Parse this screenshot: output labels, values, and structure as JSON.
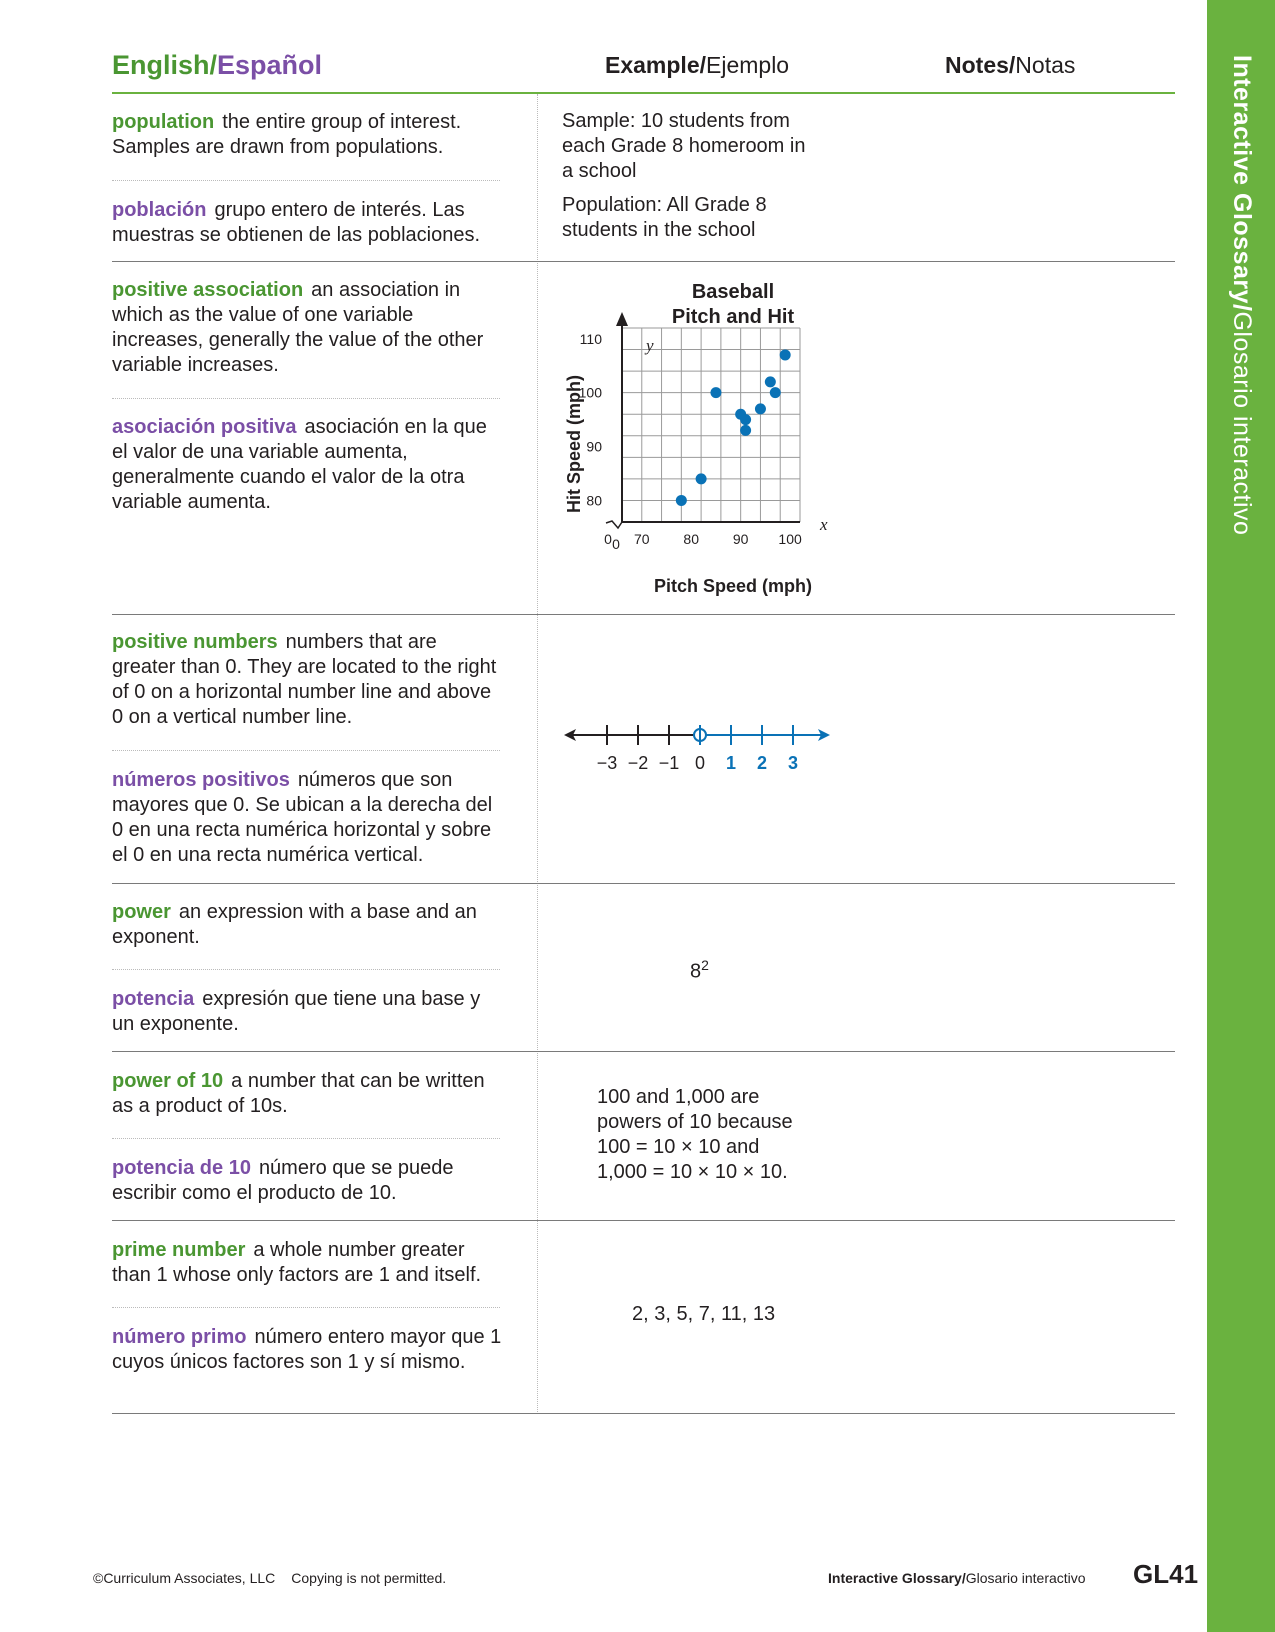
{
  "side_tab": {
    "bold": "Interactive Glossary/",
    "regular": "Glosario interactivo"
  },
  "header": {
    "english": "English/",
    "espanol": "Español",
    "example_bold": "Example/",
    "example_regular": "Ejemplo",
    "notes_bold": "Notes/",
    "notes_regular": "Notas"
  },
  "entries": [
    {
      "en_term": "population",
      "en_def": "the entire group of interest. Samples are drawn from populations.",
      "es_term": "población",
      "es_def": "grupo entero de interés. Las muestras se obtienen de las poblaciones.",
      "example": {
        "line1": "Sample: 10 students from each Grade 8 homeroom in a school",
        "line2": "Population: All Grade 8 students in the school"
      }
    },
    {
      "en_term": "positive association",
      "en_def": "an association in which as the value of one variable increases, generally the value of the other variable increases.",
      "es_term": "asociación positiva",
      "es_def": "asociación en la que el valor de una variable aumenta, generalmente cuando el valor de la otra variable aumenta."
    },
    {
      "en_term": "positive numbers",
      "en_def": "numbers that are greater than 0. They are located to the right of 0 on a horizontal number line and above 0 on a vertical number line.",
      "es_term": "números positivos",
      "es_def": "números que son mayores que 0. Se ubican a la derecha del 0 en una recta numérica horizontal y sobre el 0 en una recta numérica vertical.",
      "number_line": {
        "labels": [
          "−3",
          "−2",
          "−1",
          "0",
          "1",
          "2",
          "3"
        ]
      }
    },
    {
      "en_term": "power",
      "en_def": "an expression with a base and an exponent.",
      "es_term": "potencia",
      "es_def": "expresión que tiene una base y un exponente.",
      "example": {
        "base": "8",
        "exponent": "2"
      }
    },
    {
      "en_term": "power of 10",
      "en_def": "a number that can be written as a product of 10s.",
      "es_term": "potencia de 10",
      "es_def": "número que se puede escribir como el producto de 10.",
      "example": {
        "line1": "100 and 1,000 are",
        "line2": "powers of 10 because",
        "line3": "100 = 10 × 10 and",
        "line4": "1,000 = 10 × 10 × 10."
      }
    },
    {
      "en_term": "prime number",
      "en_def": "a whole number greater than 1 whose only factors are 1 and itself.",
      "es_term": "número primo",
      "es_def": "número entero mayor que 1 cuyos únicos factores son 1 y sí mismo.",
      "example": {
        "text": "2, 3, 5, 7, 11, 13"
      }
    }
  ],
  "chart_data": {
    "type": "scatter",
    "title": "Baseball Pitch and Hit",
    "title_line1": "Baseball",
    "title_line2": "Pitch and Hit",
    "xlabel": "Pitch Speed (mph)",
    "ylabel": "Hit Speed (mph)",
    "x_var": "x",
    "y_var": "y",
    "xlim": [
      66,
      102
    ],
    "ylim": [
      76,
      112
    ],
    "x_ticks": [
      70,
      80,
      90,
      100
    ],
    "y_ticks": [
      80,
      90,
      100,
      110
    ],
    "axis_break_label": "0",
    "grid": true,
    "point_color": "#0a72b6",
    "points": [
      [
        78,
        80
      ],
      [
        82,
        84
      ],
      [
        85,
        100
      ],
      [
        90,
        96
      ],
      [
        91,
        95
      ],
      [
        91,
        93
      ],
      [
        94,
        97
      ],
      [
        96,
        102
      ],
      [
        97,
        100
      ],
      [
        99,
        107
      ]
    ]
  },
  "footer": {
    "copyright": "©Curriculum Associates, LLC",
    "notice": "Copying is not permitted.",
    "glossary_bold": "Interactive Glossary/",
    "glossary_regular": "Glosario interactivo",
    "page_number": "GL41"
  },
  "colors": {
    "green": "#4a9632",
    "purple": "#7b4fa6",
    "tab_green": "#6ab23f",
    "blue": "#0a72b6"
  }
}
